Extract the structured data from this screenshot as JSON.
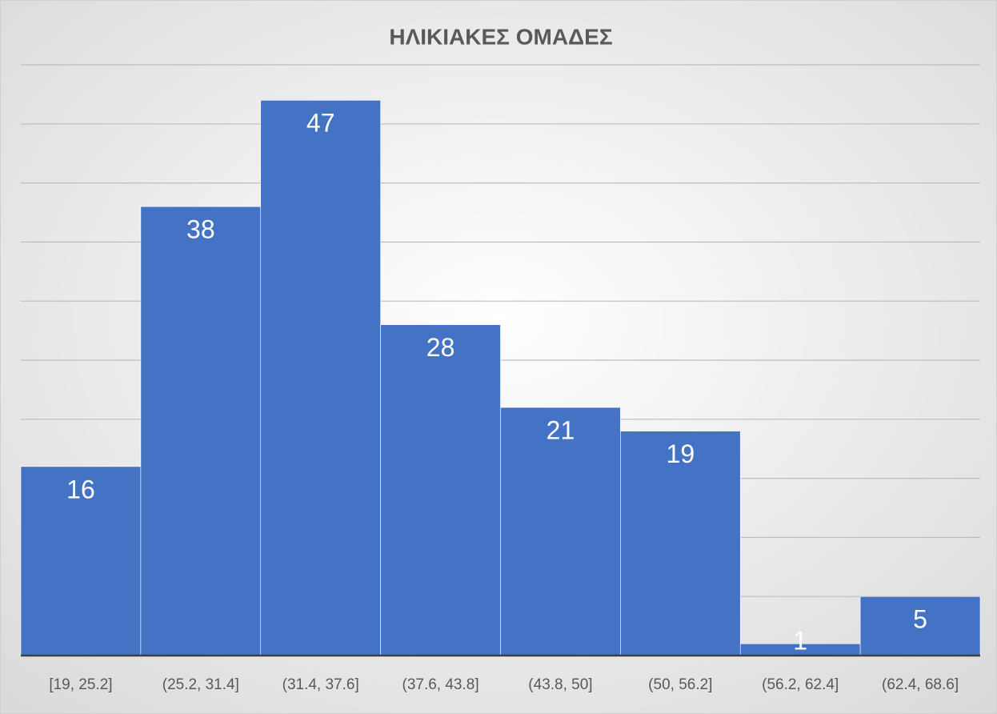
{
  "chart_data": {
    "type": "bar",
    "title": "ΗΛΙΚΙΑΚΕΣ ΟΜΑΔΕΣ",
    "categories": [
      "[19, 25.2]",
      "(25.2, 31.4]",
      "(31.4, 37.6]",
      "(37.6, 43.8]",
      "(43.8, 50]",
      "(50, 56.2]",
      "(56.2, 62.4]",
      "(62.4, 68.6]"
    ],
    "values": [
      16,
      38,
      47,
      28,
      21,
      19,
      1,
      5
    ],
    "color": "#4472c4",
    "ylim": [
      0,
      50
    ],
    "yticks": [
      0,
      5,
      10,
      15,
      20,
      25,
      30,
      35,
      40,
      45,
      50
    ],
    "grid": true
  }
}
